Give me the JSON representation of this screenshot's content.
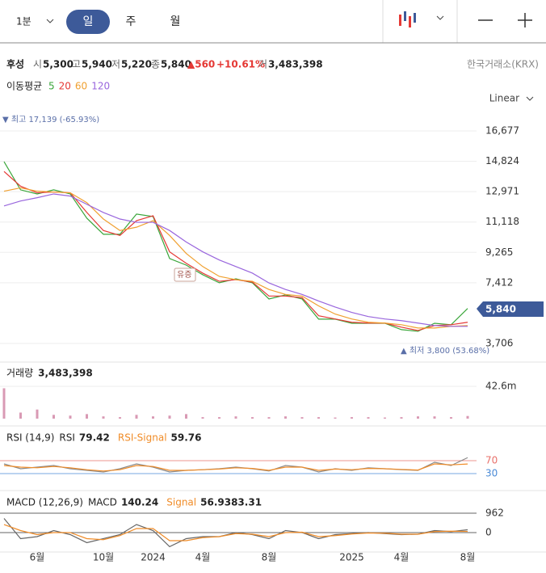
{
  "toolbar": {
    "interval": "1분",
    "tabs": [
      "일",
      "주",
      "월"
    ]
  },
  "header": {
    "name": "후성",
    "open_label": "시",
    "open": "5,300",
    "high_label": "고",
    "high": "5,940",
    "low_label": "저",
    "low": "5,220",
    "close_label": "종",
    "close": "5,840",
    "change": "▲560",
    "change_pct": "+10.61%",
    "volume_label": "거",
    "volume": "3,483,398",
    "exchange": "한국거래소(KRX)"
  },
  "ma_label": "이동평균",
  "scale": "Linear",
  "chart_data": [
    {
      "type": "line",
      "categories": [
        null,
        null,
        "6월",
        null,
        null,
        null,
        "10월",
        null,
        null,
        "2024",
        null,
        null,
        "4월",
        null,
        null,
        null,
        "8월",
        null,
        null,
        null,
        null,
        "2025",
        null,
        null,
        "4월",
        null,
        null,
        null,
        "8월"
      ],
      "series": [
        {
          "name": "5",
          "color": "#3aa63a",
          "values": [
            14800,
            13080,
            12830,
            13080,
            12830,
            11350,
            10370,
            10370,
            11600,
            11450,
            8890,
            8490,
            7900,
            7410,
            7650,
            7410,
            6420,
            6670,
            6420,
            5190,
            5190,
            4940,
            4940,
            4940,
            4550,
            4450,
            4940,
            4850,
            5840
          ]
        },
        {
          "name": "20",
          "color": "#e53935",
          "values": [
            14200,
            13300,
            12900,
            12950,
            12900,
            11700,
            10600,
            10300,
            11200,
            11500,
            9300,
            8600,
            8000,
            7500,
            7600,
            7450,
            6600,
            6600,
            6500,
            5400,
            5200,
            5000,
            4950,
            4950,
            4700,
            4500,
            4800,
            4850,
            5000
          ]
        },
        {
          "name": "60",
          "color": "#f0a030",
          "values": [
            13000,
            13200,
            13000,
            12950,
            12900,
            12300,
            11300,
            10600,
            10800,
            11200,
            10300,
            9200,
            8400,
            7800,
            7600,
            7500,
            7000,
            6700,
            6600,
            6000,
            5500,
            5200,
            5000,
            4950,
            4850,
            4650,
            4650,
            4750,
            4800
          ]
        },
        {
          "name": "120",
          "color": "#9966dd",
          "values": [
            12100,
            12400,
            12600,
            12830,
            12700,
            12200,
            11700,
            11300,
            11100,
            11100,
            10600,
            9900,
            9300,
            8800,
            8400,
            8000,
            7400,
            7000,
            6700,
            6300,
            5930,
            5600,
            5350,
            5200,
            5100,
            4950,
            4800,
            4750,
            4750
          ]
        }
      ],
      "ylim": [
        2720,
        17760
      ],
      "yticks": [
        {
          "value": 16677,
          "label": "16,677"
        },
        {
          "value": 14824,
          "label": "14,824"
        },
        {
          "value": 12971,
          "label": "12,971"
        },
        {
          "value": 11118,
          "label": "11,118"
        },
        {
          "value": 9265,
          "label": "9,265"
        },
        {
          "value": 7412,
          "label": "7,412"
        },
        {
          "value": 3706,
          "label": "3,706"
        }
      ],
      "grid": true,
      "annotations": {
        "high": "▼ 최고 17,139 (-65.93%)",
        "low": "▲ 최저 3,800 (53.68%)",
        "event": "유증",
        "last": "5,840"
      }
    },
    {
      "type": "bar",
      "title": "거래량",
      "last_label": "3,483,398",
      "color": "#d99ab4",
      "values": [
        40000000,
        8000000,
        12000000,
        5000000,
        4000000,
        6000000,
        3000000,
        2000000,
        5000000,
        3000000,
        4000000,
        6000000,
        2000000,
        2000000,
        3000000,
        2000000,
        2000000,
        3000000,
        2000000,
        2000000,
        1500000,
        2000000,
        2000000,
        1500000,
        2000000,
        3000000,
        3000000,
        2000000,
        3483398
      ],
      "ylim": [
        0,
        72400000
      ],
      "yticks": [
        {
          "value": 42600000,
          "label": "42.6m"
        }
      ]
    },
    {
      "type": "line",
      "title": "RSI (14,9)",
      "series": [
        {
          "name": "RSI",
          "color": "#8a8a8a",
          "last_label": "79.42",
          "values": [
            60,
            45,
            50,
            55,
            45,
            40,
            35,
            45,
            60,
            50,
            35,
            40,
            42,
            45,
            50,
            45,
            38,
            55,
            50,
            35,
            45,
            40,
            48,
            45,
            42,
            40,
            65,
            55,
            79.42
          ]
        },
        {
          "name": "RSI-Signal",
          "color": "#f08c28",
          "last_label": "59.76",
          "values": [
            55,
            50,
            48,
            52,
            48,
            42,
            38,
            42,
            55,
            52,
            40,
            40,
            42,
            44,
            48,
            46,
            40,
            50,
            50,
            40,
            44,
            42,
            46,
            45,
            43,
            41,
            60,
            57,
            59.76
          ]
        }
      ],
      "ylim": [
        -5,
        107.5
      ],
      "yticks": [
        70,
        30
      ],
      "ytick_colors": [
        "#e8706a",
        "#4a8ad6"
      ]
    },
    {
      "type": "line",
      "title": "MACD (12,26,9)",
      "series": [
        {
          "name": "MACD",
          "color": "#666666",
          "last_label": "140.24",
          "values": [
            700,
            -300,
            -200,
            100,
            -100,
            -500,
            -300,
            -100,
            400,
            100,
            -700,
            -300,
            -200,
            -200,
            0,
            -100,
            -300,
            100,
            0,
            -300,
            -100,
            -50,
            0,
            -50,
            -100,
            -80,
            100,
            50,
            140.24
          ]
        },
        {
          "name": "Signal",
          "color": "#f08c28",
          "last_label": "56.9383.31",
          "values": [
            400,
            100,
            -100,
            0,
            0,
            -300,
            -350,
            -150,
            200,
            200,
            -400,
            -400,
            -250,
            -200,
            -50,
            -80,
            -200,
            0,
            20,
            -200,
            -150,
            -70,
            -20,
            -30,
            -80,
            -80,
            50,
            70,
            56.94
          ]
        }
      ],
      "ylim": [
        -842,
        1563
      ],
      "yticks": [
        962,
        0
      ],
      "ytick_colors": [
        "#333333",
        "#333333"
      ]
    }
  ]
}
